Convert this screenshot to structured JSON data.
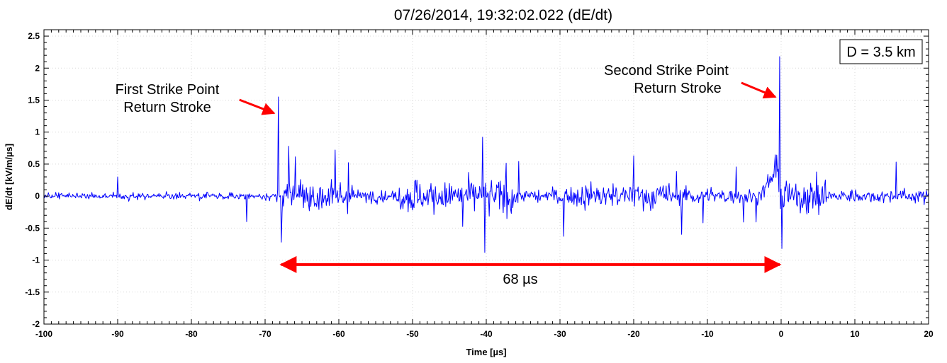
{
  "chart_data": {
    "type": "line",
    "title": "07/26/2014, 19:32:02.022 (dE/dt)",
    "xlabel": "Time [µs]",
    "ylabel": "dE/dt [kV/m/µs]",
    "xlim": [
      -100,
      20
    ],
    "ylim": [
      -2,
      2.6
    ],
    "grid": true,
    "xticks": [
      -100,
      -90,
      -80,
      -70,
      -60,
      -50,
      -40,
      -30,
      -20,
      -10,
      0,
      10,
      20
    ],
    "yticks": [
      -2,
      -1.5,
      -1,
      -0.5,
      0,
      0.5,
      1,
      1.5,
      2,
      2.5
    ],
    "series_color": "#0000ff",
    "arrow_color": "#ff0000",
    "key_points": [
      {
        "x": -100,
        "y": 0.02
      },
      {
        "x": -90,
        "y": 0.3
      },
      {
        "x": -72.5,
        "y": -0.4
      },
      {
        "x": -68.2,
        "y": 1.55
      },
      {
        "x": -67.8,
        "y": -0.72
      },
      {
        "x": -66.8,
        "y": 0.78
      },
      {
        "x": -60.5,
        "y": 0.72
      },
      {
        "x": -40.5,
        "y": 0.92
      },
      {
        "x": -40.2,
        "y": -0.88
      },
      {
        "x": -20,
        "y": 0.63
      },
      {
        "x": -0.2,
        "y": 2.18
      },
      {
        "x": 0.1,
        "y": -0.82
      },
      {
        "x": 20,
        "y": 0.05
      }
    ],
    "annotations": {
      "distance_box": "D = 3.5 km",
      "first_strike": [
        "First Strike Point",
        "Return Stroke"
      ],
      "second_strike": [
        "Second Strike Point",
        "Return Stroke"
      ],
      "interval": {
        "label": "68 µs",
        "x_start": -68,
        "x_end": 0,
        "y": -1.07
      },
      "first_pointer_x": -68.2,
      "second_pointer_x": -0.2
    }
  }
}
